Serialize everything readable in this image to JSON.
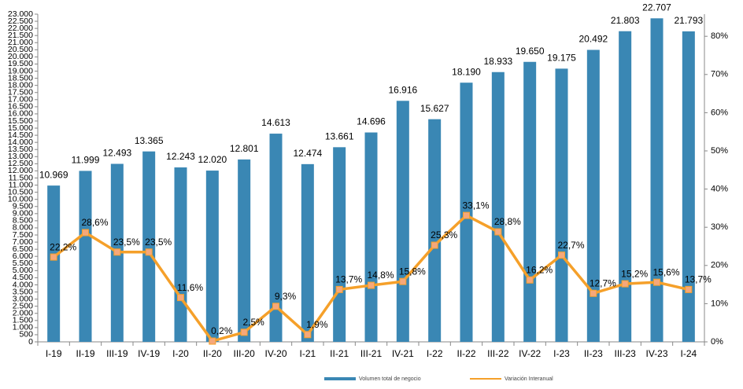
{
  "chart_data": {
    "type": "bar_line",
    "categories": [
      "I-19",
      "II-19",
      "III-19",
      "IV-19",
      "I-20",
      "II-20",
      "III-20",
      "IV-20",
      "I-21",
      "II-21",
      "III-21",
      "IV-21",
      "I-22",
      "II-22",
      "III-22",
      "IV-22",
      "I-23",
      "II-23",
      "III-23",
      "IV-23",
      "I-24"
    ],
    "series": [
      {
        "name": "Volumen total de negocio",
        "color": "#3a87b4",
        "type": "bar",
        "values": [
          10969,
          11999,
          12493,
          13365,
          12243,
          12020,
          12801,
          14613,
          12474,
          13661,
          14696,
          16916,
          15627,
          18190,
          18933,
          19650,
          19175,
          20492,
          21803,
          22707,
          21793
        ],
        "value_labels": [
          "10.969",
          "11.999",
          "12.493",
          "13.365",
          "12.243",
          "12.020",
          "12.801",
          "14.613",
          "12.474",
          "13.661",
          "14.696",
          "16.916",
          "15.627",
          "18.190",
          "18.933",
          "19.650",
          "19.175",
          "20.492",
          "21.803",
          "22.707",
          "21.793"
        ]
      },
      {
        "name": "Variación Interanual",
        "color": "#f5a02a",
        "type": "line",
        "axis": "y2",
        "values": [
          22.2,
          28.6,
          23.5,
          23.5,
          11.6,
          0.2,
          2.5,
          9.3,
          1.9,
          13.7,
          14.8,
          15.8,
          25.3,
          33.1,
          28.8,
          16.2,
          22.7,
          12.7,
          15.2,
          15.6,
          13.7
        ],
        "value_labels": [
          "22,2%",
          "28,6%",
          "23,5%",
          "23,5%",
          "11,6%",
          "0,2%",
          "2,5%",
          "9,3%",
          "1,9%",
          "13,7%",
          "14,8%",
          "15,8%",
          "25,3%",
          "33,1%",
          "28,8%",
          "16,2%",
          "22,7%",
          "12,7%",
          "15,2%",
          "15,6%",
          "13,7%"
        ]
      }
    ],
    "ylim": [
      0,
      23000
    ],
    "yticks": [
      0,
      500,
      {
        "value": 1000,
        "label": "1.000"
      },
      {
        "value": 1500,
        "label": "1.500"
      },
      {
        "value": 2000,
        "label": "2.000"
      },
      {
        "value": 2500,
        "label": "2.500"
      },
      {
        "value": 3000,
        "label": "3.000"
      },
      {
        "value": 3500,
        "label": "3.500"
      },
      {
        "value": 4000,
        "label": "4.000"
      },
      {
        "value": 4500,
        "label": "4.500"
      },
      {
        "value": 5000,
        "label": "5.000"
      },
      {
        "value": 5500,
        "label": "5.500"
      },
      {
        "value": 6000,
        "label": "6.000"
      },
      {
        "value": 6500,
        "label": "6.500"
      },
      {
        "value": 7000,
        "label": "7.000"
      },
      {
        "value": 7500,
        "label": "7.500"
      },
      {
        "value": 8000,
        "label": "8.000"
      },
      {
        "value": 8500,
        "label": "8.500"
      },
      {
        "value": 9000,
        "label": "9.000"
      },
      {
        "value": 9500,
        "label": "9.500"
      },
      {
        "value": 10000,
        "label": "10.000"
      },
      {
        "value": 10500,
        "label": "10.500"
      },
      {
        "value": 11000,
        "label": "11.000"
      },
      {
        "value": 11500,
        "label": "11.500"
      },
      {
        "value": 12000,
        "label": "12.000"
      },
      {
        "value": 12500,
        "label": "12.500"
      },
      {
        "value": 13000,
        "label": "13.000"
      },
      {
        "value": 13500,
        "label": "13.500"
      },
      {
        "value": 14000,
        "label": "14.000"
      },
      {
        "value": 14500,
        "label": "14.500"
      },
      {
        "value": 15000,
        "label": "15.000"
      },
      {
        "value": 15500,
        "label": "15.500"
      },
      {
        "value": 16000,
        "label": "16.000"
      },
      {
        "value": 16500,
        "label": "16.500"
      },
      {
        "value": 17000,
        "label": "17.000"
      },
      {
        "value": 17500,
        "label": "17.500"
      },
      {
        "value": 18000,
        "label": "18.000"
      },
      {
        "value": 18500,
        "label": "18.500"
      },
      {
        "value": 19000,
        "label": "19.000"
      },
      {
        "value": 19500,
        "label": "19.500"
      },
      {
        "value": 20000,
        "label": "20.000"
      },
      {
        "value": 20500,
        "label": "20.500"
      },
      {
        "value": 21000,
        "label": "21.000"
      },
      {
        "value": 21500,
        "label": "21.500"
      },
      {
        "value": 22000,
        "label": "22.000"
      },
      {
        "value": 22500,
        "label": "22.500"
      },
      {
        "value": 23000,
        "label": "23.000"
      }
    ],
    "y2lim": [
      0,
      85.8
    ],
    "y2ticks": [
      {
        "value": 0,
        "label": "0%"
      },
      {
        "value": 10,
        "label": "10%"
      },
      {
        "value": 20,
        "label": "20%"
      },
      {
        "value": 30,
        "label": "30%"
      },
      {
        "value": 40,
        "label": "40%"
      },
      {
        "value": 50,
        "label": "50%"
      },
      {
        "value": 60,
        "label": "60%"
      },
      {
        "value": 70,
        "label": "70%"
      },
      {
        "value": 80,
        "label": "80%"
      }
    ],
    "legend": "bottom"
  }
}
